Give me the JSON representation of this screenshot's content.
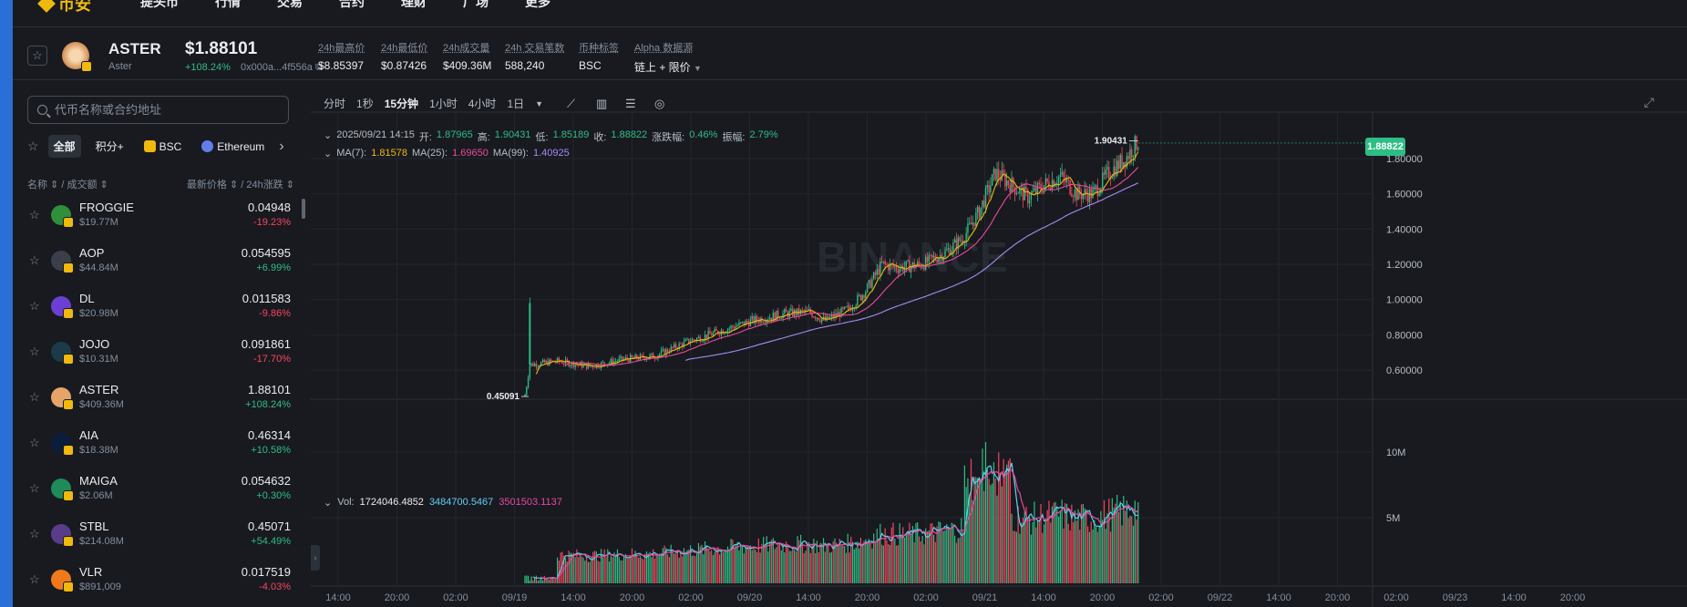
{
  "nav": {
    "logo": "币安",
    "items": [
      "提头币",
      "行情",
      "交易",
      "合约",
      "理财",
      "广场",
      "更多"
    ]
  },
  "header": {
    "symbol": "ASTER",
    "name": "Aster",
    "price": "$1.88101",
    "change": "+108.24%",
    "address": "0x000a...4f556a",
    "stats": [
      {
        "label": "24h最高价",
        "value": "$8.85397"
      },
      {
        "label": "24h最低价",
        "value": "$0.87426"
      },
      {
        "label": "24h成交量",
        "value": "$409.36M"
      },
      {
        "label": "24h 交易笔数",
        "value": "588,240"
      },
      {
        "label": "币种标签",
        "value": "BSC"
      },
      {
        "label": "Alpha 数据源",
        "value": "链上 + 限价"
      }
    ]
  },
  "sidebar": {
    "search_placeholder": "代币名称或合约地址",
    "filters": [
      "全部",
      "积分+",
      "BSC",
      "Ethereum"
    ],
    "head_left": "名称 ⇕ / 成交额 ⇕",
    "head_right": "最新价格 ⇕ / 24h涨跌 ⇕",
    "tokens": [
      {
        "symbol": "FROGGIE",
        "volume": "$19.77M",
        "price": "0.04948",
        "change": "-19.23%",
        "dir": "down",
        "color": "#2f8f3a"
      },
      {
        "symbol": "AOP",
        "volume": "$44.84M",
        "price": "0.054595",
        "change": "+6.99%",
        "dir": "up",
        "color": "#3a3f4b"
      },
      {
        "symbol": "DL",
        "volume": "$20.98M",
        "price": "0.011583",
        "change": "-9.86%",
        "dir": "down",
        "color": "#6b3fd4"
      },
      {
        "symbol": "JOJO",
        "volume": "$10.31M",
        "price": "0.091861",
        "change": "-17.70%",
        "dir": "down",
        "color": "#1b3b4a"
      },
      {
        "symbol": "ASTER",
        "volume": "$409.36M",
        "price": "1.88101",
        "change": "+108.24%",
        "dir": "up",
        "color": "#e6a46a"
      },
      {
        "symbol": "AIA",
        "volume": "$18.38M",
        "price": "0.46314",
        "change": "+10.58%",
        "dir": "up",
        "color": "#0c1d3c"
      },
      {
        "symbol": "MAIGA",
        "volume": "$2.06M",
        "price": "0.054632",
        "change": "+0.30%",
        "dir": "up",
        "color": "#1f8a5a"
      },
      {
        "symbol": "STBL",
        "volume": "$214.08M",
        "price": "0.45071",
        "change": "+54.49%",
        "dir": "up",
        "color": "#5a3d8a"
      },
      {
        "symbol": "VLR",
        "volume": "$891,009",
        "price": "0.017519",
        "change": "-4.03%",
        "dir": "down",
        "color": "#f07a1b"
      }
    ]
  },
  "toolbar": {
    "timeframes": [
      "分时",
      "1秒",
      "15分钟",
      "1小时",
      "4小时",
      "1日"
    ],
    "active": "15分钟",
    "icons": [
      "indicator-icon",
      "candle-type-icon",
      "settings-icon",
      "target-icon"
    ]
  },
  "ohlc": {
    "time": "2025/09/21 14:15",
    "open_label": "开:",
    "open": "1.87965",
    "high_label": "高:",
    "high": "1.90431",
    "low_label": "低:",
    "low": "1.85189",
    "close_label": "收:",
    "close": "1.88822",
    "chg_label": "涨跌幅:",
    "chg": "0.46%",
    "amp_label": "振幅:",
    "amp": "2.79%"
  },
  "ma": {
    "ma7_label": "MA(7):",
    "ma7": "1.81578",
    "ma25_label": "MA(25):",
    "ma25": "1.69650",
    "ma99_label": "MA(99):",
    "ma99": "1.40925"
  },
  "vol": {
    "label": "Vol:",
    "v1": "1724046.4852",
    "v2": "3484700.5467",
    "v3": "3501503.1137"
  },
  "chart_data": {
    "type": "candlestick",
    "watermark": "BINANCE",
    "last_price": "1.88822",
    "high_marker": "1.90431",
    "low_marker": "0.45091",
    "y_ticks": [
      "1.80000",
      "1.60000",
      "1.40000",
      "1.20000",
      "1.00000",
      "0.80000",
      "0.60000"
    ],
    "vol_ticks": [
      "10M",
      "5M"
    ],
    "x_ticks": [
      "14:00",
      "20:00",
      "02:00",
      "09/19",
      "14:00",
      "20:00",
      "02:00",
      "09/20",
      "14:00",
      "20:00",
      "02:00",
      "09/21",
      "14:00",
      "20:00",
      "02:00",
      "09/22",
      "14:00",
      "20:00",
      "02:00",
      "09/23",
      "14:00",
      "20:00"
    ],
    "ylim": [
      0.45,
      1.95
    ],
    "colors": {
      "up": "#2ebd85",
      "down": "#f6465d",
      "ma7": "#f0b90b",
      "ma25": "#e84a9b",
      "ma99": "#a68bf2",
      "vol_ma1": "#5fd1f2",
      "vol_ma2": "#e84a9b"
    },
    "path_points": [
      [
        0,
        0.45
      ],
      [
        3,
        0.63
      ],
      [
        20,
        0.65
      ],
      [
        40,
        0.62
      ],
      [
        60,
        0.66
      ],
      [
        80,
        0.68
      ],
      [
        100,
        0.76
      ],
      [
        120,
        0.82
      ],
      [
        140,
        0.88
      ],
      [
        160,
        0.92
      ],
      [
        175,
        0.93
      ],
      [
        185,
        0.88
      ],
      [
        200,
        0.95
      ],
      [
        210,
        1.05
      ],
      [
        220,
        1.2
      ],
      [
        230,
        1.18
      ],
      [
        245,
        1.2
      ],
      [
        258,
        1.26
      ],
      [
        270,
        1.35
      ],
      [
        280,
        1.5
      ],
      [
        290,
        1.72
      ],
      [
        300,
        1.65
      ],
      [
        310,
        1.58
      ],
      [
        320,
        1.65
      ],
      [
        330,
        1.7
      ],
      [
        340,
        1.6
      ],
      [
        350,
        1.6
      ],
      [
        360,
        1.72
      ],
      [
        370,
        1.8
      ],
      [
        378,
        1.9
      ]
    ]
  }
}
